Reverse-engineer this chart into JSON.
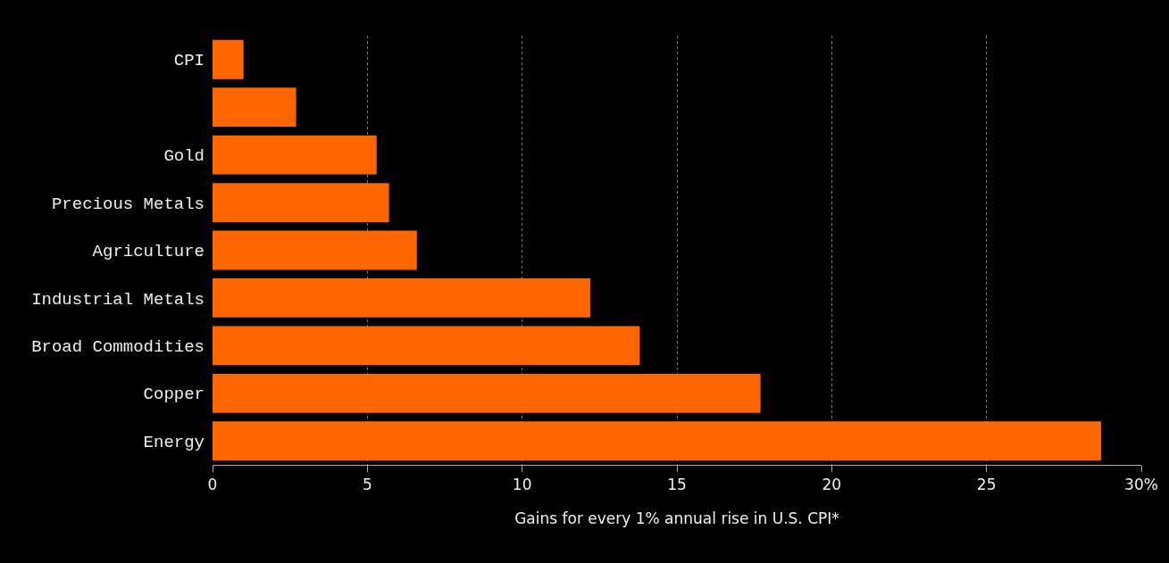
{
  "chart_data": {
    "type": "bar",
    "orientation": "horizontal",
    "xlabel": "Gains for every 1% annual rise in U.S. CPI*",
    "categories": [
      "CPI",
      null,
      "Gold",
      "Precious Metals",
      "Agriculture",
      "Industrial Metals",
      "Broad Commodities",
      "Copper",
      "Energy"
    ],
    "values": [
      1.0,
      2.7,
      5.3,
      5.7,
      6.6,
      12.2,
      13.8,
      17.7,
      28.7
    ],
    "color": "#ff6600",
    "xlim": [
      0,
      30
    ],
    "xticks": [
      0,
      5,
      10,
      15,
      20,
      25,
      {
        "value": 30,
        "label": "30%"
      }
    ],
    "grid": "x"
  }
}
